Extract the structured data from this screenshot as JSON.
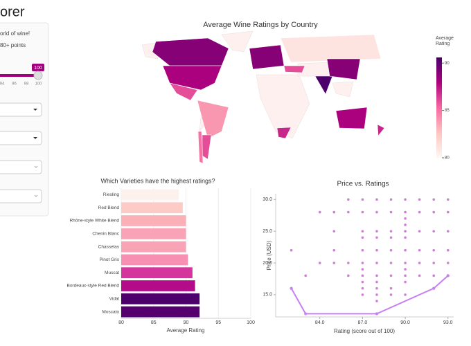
{
  "header": {
    "title": "orer"
  },
  "sidebar": {
    "intro": "orld of wine!",
    "points": "80+ points",
    "slider_value": 100,
    "slider_ticks": [
      94,
      96,
      98,
      100
    ]
  },
  "chart_data": [
    {
      "type": "choropleth",
      "title": "Average Wine Ratings by Country",
      "colorbar_title": "Average Rating",
      "values": [
        89,
        88,
        86,
        84,
        86,
        85,
        89,
        81,
        87,
        86,
        90.5,
        89,
        88,
        87
      ],
      "colorscale": [
        "#fff7f3",
        "#fcc5c0",
        "#f768a1",
        "#ae017e",
        "#49006a"
      ],
      "zlim": [
        80,
        90.6
      ],
      "zticks": [
        80,
        85,
        90
      ]
    },
    {
      "type": "hbar",
      "title": "Which Varieties have the highest ratings?",
      "xlabel": "Average Rating",
      "categories": [
        "Riesling",
        "Red Blend",
        "Rhône-style White Blend",
        "Chenin Blanc",
        "Chasselas",
        "Pinot Gris",
        "Muscat",
        "Bordeaux-style Red Blend",
        "Vidal",
        "Moscato"
      ],
      "values": [
        88.9,
        89.5,
        90.0,
        90.0,
        90.0,
        90.3,
        91.0,
        91.4,
        92.1,
        92.1
      ],
      "colors": [
        "#fdf1ee",
        "#fccbc6",
        "#fbb0b8",
        "#f9a3b6",
        "#f9a3b6",
        "#f78fb3",
        "#d4349c",
        "#b40c88",
        "#4d006b",
        "#560070"
      ],
      "xlim": [
        80,
        100
      ],
      "xticks": [
        80,
        85,
        90,
        95,
        100
      ]
    },
    {
      "type": "scatter",
      "title": "Price vs. Ratings",
      "xlabel": "Rating (score out of 100)",
      "ylabel": "Price (USD)",
      "xlim": [
        80.9,
        93.4
      ],
      "ylim": [
        11.5,
        30.9
      ],
      "xticks": [
        {
          "value": 84,
          "label": "84.0"
        },
        {
          "value": 87,
          "label": "87.0"
        },
        {
          "value": 90,
          "label": "90.0"
        },
        {
          "value": 93,
          "label": "93.0"
        }
      ],
      "yticks": [
        {
          "value": 15,
          "label": "15.0"
        },
        {
          "value": 20,
          "label": "20.0"
        },
        {
          "value": 25,
          "label": "25.0"
        },
        {
          "value": 30,
          "label": "30.0"
        }
      ],
      "series": [
        {
          "color": "#c060c8",
          "mode": "markers",
          "x": [
            82,
            82,
            83,
            84,
            84,
            85,
            85,
            85,
            85,
            86,
            86,
            86,
            86,
            87,
            87,
            87,
            87,
            87,
            87,
            87,
            87,
            87,
            87,
            87,
            88,
            88,
            88,
            88,
            88,
            88,
            88,
            88,
            88,
            88,
            88,
            88,
            89,
            89,
            89,
            89,
            89,
            89,
            89,
            89,
            89,
            90,
            90,
            90,
            90,
            90,
            90,
            90,
            90,
            90,
            90,
            90,
            90,
            91,
            91,
            91,
            91,
            91,
            91,
            92,
            92,
            92,
            92,
            92,
            92,
            92,
            93,
            93,
            93,
            93,
            93,
            93
          ],
          "values": [
            22,
            16,
            18,
            28,
            20,
            28,
            25,
            22,
            20,
            30,
            28,
            20,
            18,
            30,
            28,
            25,
            24,
            22,
            20,
            19,
            18,
            17,
            16,
            15,
            30,
            28,
            25,
            24,
            22,
            20,
            18,
            17,
            16,
            15,
            14,
            12,
            30,
            28,
            25,
            24,
            22,
            20,
            18,
            16,
            15,
            30,
            28,
            27,
            26,
            25,
            24,
            22,
            20,
            19,
            18,
            17,
            15,
            30,
            28,
            25,
            22,
            20,
            18,
            30,
            28,
            25,
            22,
            20,
            18,
            16,
            30,
            28,
            25,
            22,
            20,
            18
          ]
        },
        {
          "color": "#c77ff0",
          "mode": "lines+markers",
          "x": [
            82,
            83,
            88,
            92,
            93
          ],
          "values": [
            16,
            12,
            12,
            16,
            18
          ]
        }
      ]
    }
  ]
}
